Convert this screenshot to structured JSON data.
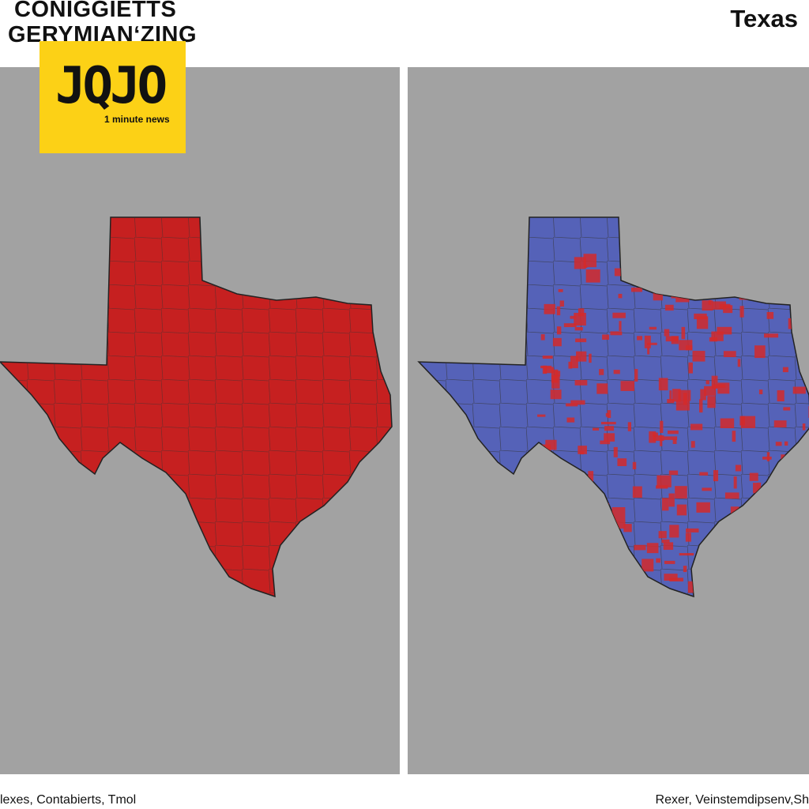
{
  "header": {
    "title_lines": [
      "CONIGGIETTS",
      "GERYMIANʻZING"
    ],
    "region": "Texas"
  },
  "logo": {
    "mark": "JQJO",
    "tagline": "1 minute news"
  },
  "footer": {
    "left": "lexes, Contabierts, Tmol",
    "right": "Rexer, Veinstemdipsenv,Sh"
  }
}
